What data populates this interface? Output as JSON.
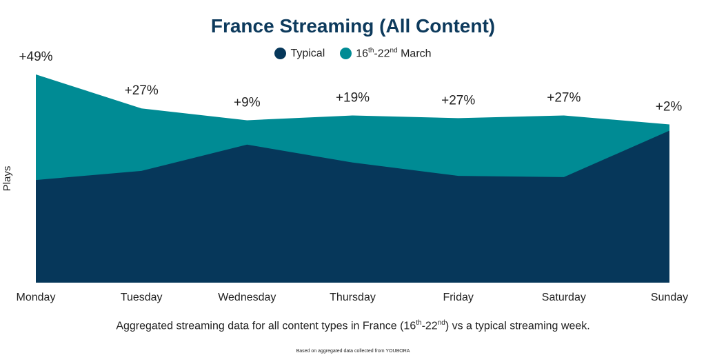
{
  "chart_data": {
    "type": "area",
    "title": "France Streaming (All Content)",
    "ylabel": "Plays",
    "xlabel": "",
    "categories": [
      "Monday",
      "Tuesday",
      "Wednesday",
      "Thursday",
      "Friday",
      "Saturday",
      "Sunday"
    ],
    "ylim": [
      0,
      100
    ],
    "grid": false,
    "legend_position": "top-center",
    "series": [
      {
        "name": "Typical",
        "color": "#06375a",
        "values": [
          49.3,
          53.7,
          66.3,
          57.7,
          51.3,
          50.7,
          73.0
        ]
      },
      {
        "name": "16th-22nd March",
        "color": "#008b94",
        "values": [
          100.0,
          83.7,
          78.0,
          80.3,
          79.0,
          80.3,
          76.0
        ]
      }
    ],
    "annotations": [
      "+49%",
      "+27%",
      "+9%",
      "+19%",
      "+27%",
      "+27%",
      "+2%"
    ]
  },
  "legend": {
    "typical": "Typical",
    "march_base": "16",
    "march_sup1": "th",
    "march_mid": "-22",
    "march_sup2": "nd",
    "march_tail": " March"
  },
  "caption": {
    "pre": "Aggregated streaming data for all content types in France (16",
    "sup1": "th",
    "mid": "-22",
    "sup2": "nd",
    "post": ") vs a typical streaming week."
  },
  "footnote": "Based on aggregated data collected from YOUBORA"
}
